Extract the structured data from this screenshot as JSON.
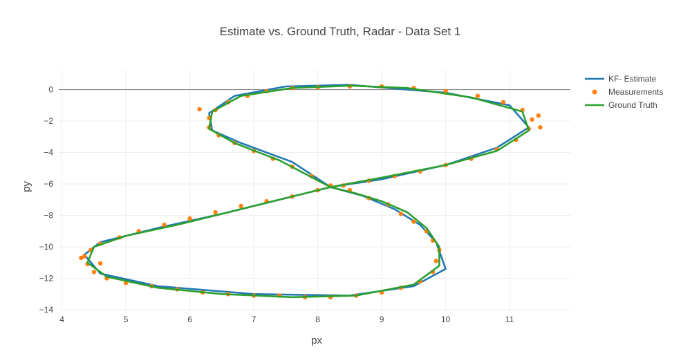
{
  "chart_data": {
    "type": "line",
    "title": "Estimate vs. Ground Truth, Radar - Data Set 1",
    "xlabel": "px",
    "ylabel": "py",
    "xlim": [
      3.95,
      11.95
    ],
    "ylim": [
      -14.0,
      1.3
    ],
    "x_ticks": [
      4,
      5,
      6,
      7,
      8,
      9,
      10,
      11
    ],
    "y_ticks": [
      0,
      -2,
      -4,
      -6,
      -8,
      -10,
      -12,
      -14
    ],
    "grid": true,
    "zero_line": true,
    "legend_position": "top-right",
    "series": [
      {
        "name": "KF- Estimate",
        "mode": "lines",
        "color": "#1f77b4",
        "points": [
          [
            8.2,
            -6.2
          ],
          [
            8.7,
            -6.75
          ],
          [
            9.2,
            -7.6
          ],
          [
            9.6,
            -8.6
          ],
          [
            9.85,
            -9.7
          ],
          [
            10.0,
            -11.4
          ],
          [
            9.5,
            -12.5
          ],
          [
            8.5,
            -13.1
          ],
          [
            7.0,
            -13.0
          ],
          [
            5.5,
            -12.5
          ],
          [
            4.6,
            -11.7
          ],
          [
            4.35,
            -10.5
          ],
          [
            4.6,
            -9.7
          ],
          [
            5.5,
            -8.8
          ],
          [
            6.5,
            -7.9
          ],
          [
            7.5,
            -6.9
          ],
          [
            8.2,
            -6.2
          ],
          [
            9.0,
            -5.7
          ],
          [
            10.0,
            -4.8
          ],
          [
            10.8,
            -3.7
          ],
          [
            11.3,
            -2.4
          ],
          [
            11.0,
            -1.0
          ],
          [
            10.0,
            -0.2
          ],
          [
            8.5,
            0.3
          ],
          [
            7.5,
            0.2
          ],
          [
            6.7,
            -0.4
          ],
          [
            6.3,
            -1.5
          ],
          [
            6.35,
            -2.6
          ],
          [
            6.8,
            -3.4
          ],
          [
            7.6,
            -4.6
          ],
          [
            8.2,
            -6.2
          ]
        ]
      },
      {
        "name": "Measurements",
        "mode": "markers",
        "color": "#ff7f0e",
        "points": [
          [
            8.2,
            -6.1
          ],
          [
            8.5,
            -6.4
          ],
          [
            8.8,
            -6.9
          ],
          [
            9.1,
            -7.3
          ],
          [
            9.3,
            -7.9
          ],
          [
            9.5,
            -8.4
          ],
          [
            9.7,
            -9.0
          ],
          [
            9.8,
            -9.6
          ],
          [
            9.9,
            -10.2
          ],
          [
            9.85,
            -10.9
          ],
          [
            9.8,
            -11.6
          ],
          [
            9.6,
            -12.2
          ],
          [
            9.3,
            -12.6
          ],
          [
            9.0,
            -12.9
          ],
          [
            8.6,
            -13.1
          ],
          [
            8.2,
            -13.2
          ],
          [
            7.8,
            -13.2
          ],
          [
            7.4,
            -13.1
          ],
          [
            7.0,
            -13.1
          ],
          [
            6.6,
            -13.0
          ],
          [
            6.2,
            -12.9
          ],
          [
            5.8,
            -12.7
          ],
          [
            5.4,
            -12.5
          ],
          [
            5.0,
            -12.3
          ],
          [
            4.7,
            -12.0
          ],
          [
            4.5,
            -11.6
          ],
          [
            4.4,
            -11.1
          ],
          [
            4.35,
            -10.6
          ],
          [
            4.45,
            -10.2
          ],
          [
            4.6,
            -9.8
          ],
          [
            4.9,
            -9.4
          ],
          [
            5.2,
            -9.0
          ],
          [
            5.6,
            -8.6
          ],
          [
            6.0,
            -8.2
          ],
          [
            6.4,
            -7.8
          ],
          [
            6.8,
            -7.4
          ],
          [
            7.2,
            -7.1
          ],
          [
            7.6,
            -6.8
          ],
          [
            8.0,
            -6.4
          ],
          [
            8.4,
            -6.1
          ],
          [
            8.8,
            -5.8
          ],
          [
            9.2,
            -5.5
          ],
          [
            9.6,
            -5.2
          ],
          [
            10.0,
            -4.8
          ],
          [
            10.4,
            -4.4
          ],
          [
            10.8,
            -3.8
          ],
          [
            11.1,
            -3.2
          ],
          [
            11.3,
            -2.5
          ],
          [
            11.35,
            -1.9
          ],
          [
            11.2,
            -1.3
          ],
          [
            10.9,
            -0.8
          ],
          [
            10.5,
            -0.4
          ],
          [
            10.0,
            -0.1
          ],
          [
            9.5,
            0.1
          ],
          [
            9.0,
            0.2
          ],
          [
            8.5,
            0.2
          ],
          [
            8.0,
            0.15
          ],
          [
            7.6,
            0.1
          ],
          [
            7.2,
            -0.1
          ],
          [
            6.9,
            -0.4
          ],
          [
            6.6,
            -0.8
          ],
          [
            6.4,
            -1.3
          ],
          [
            6.3,
            -1.8
          ],
          [
            6.3,
            -2.4
          ],
          [
            6.45,
            -2.9
          ],
          [
            6.7,
            -3.4
          ],
          [
            7.0,
            -3.9
          ],
          [
            7.3,
            -4.4
          ],
          [
            7.6,
            -4.9
          ],
          [
            7.9,
            -5.5
          ],
          [
            11.45,
            -1.65
          ],
          [
            11.48,
            -2.4
          ],
          [
            6.15,
            -1.25
          ],
          [
            4.6,
            -11.05
          ],
          [
            4.3,
            -10.7
          ]
        ]
      },
      {
        "name": "Ground Truth",
        "mode": "lines",
        "color": "#2ca02c",
        "points": [
          [
            8.2,
            -6.2
          ],
          [
            8.6,
            -6.6
          ],
          [
            9.0,
            -7.1
          ],
          [
            9.4,
            -7.8
          ],
          [
            9.7,
            -8.8
          ],
          [
            9.9,
            -10.0
          ],
          [
            9.9,
            -11.2
          ],
          [
            9.5,
            -12.4
          ],
          [
            8.6,
            -13.1
          ],
          [
            7.6,
            -13.2
          ],
          [
            6.5,
            -13.0
          ],
          [
            5.5,
            -12.6
          ],
          [
            4.7,
            -11.9
          ],
          [
            4.4,
            -11.0
          ],
          [
            4.5,
            -10.0
          ],
          [
            5.0,
            -9.3
          ],
          [
            5.8,
            -8.6
          ],
          [
            6.6,
            -7.8
          ],
          [
            7.4,
            -7.0
          ],
          [
            8.2,
            -6.2
          ],
          [
            9.0,
            -5.6
          ],
          [
            10.0,
            -4.8
          ],
          [
            10.8,
            -3.9
          ],
          [
            11.3,
            -2.6
          ],
          [
            11.2,
            -1.4
          ],
          [
            10.4,
            -0.5
          ],
          [
            9.4,
            0.1
          ],
          [
            8.5,
            0.25
          ],
          [
            7.6,
            0.1
          ],
          [
            6.8,
            -0.4
          ],
          [
            6.35,
            -1.4
          ],
          [
            6.3,
            -2.5
          ],
          [
            6.7,
            -3.4
          ],
          [
            7.4,
            -4.5
          ],
          [
            8.2,
            -6.2
          ]
        ]
      }
    ]
  }
}
